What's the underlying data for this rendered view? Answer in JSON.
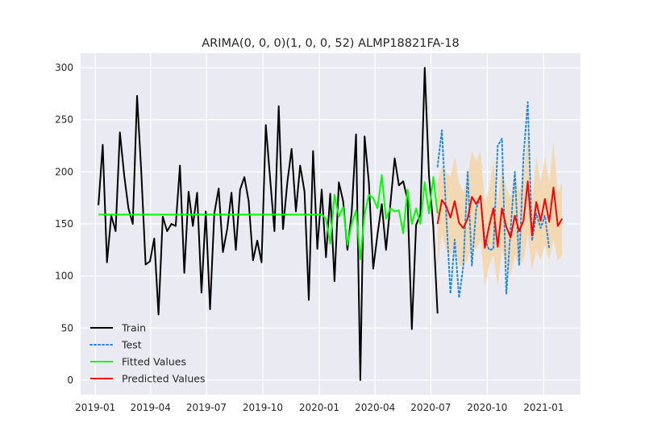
{
  "chart_data": {
    "type": "line",
    "title": "ARIMA(0, 0, 0)(1, 0, 0, 52) ALMP18821FA-18",
    "xlabel": "",
    "ylabel": "",
    "x_range": [
      "2018-12-08",
      "2021-03-02"
    ],
    "ylim": [
      -14,
      314
    ],
    "grid": true,
    "legend_position": "lower-left",
    "x_ticks": [
      {
        "date": "2019-01-01",
        "label": "2019-01"
      },
      {
        "date": "2019-04-01",
        "label": "2019-04"
      },
      {
        "date": "2019-07-01",
        "label": "2019-07"
      },
      {
        "date": "2019-10-01",
        "label": "2019-10"
      },
      {
        "date": "2020-01-01",
        "label": "2020-01"
      },
      {
        "date": "2020-04-01",
        "label": "2020-04"
      },
      {
        "date": "2020-07-01",
        "label": "2020-07"
      },
      {
        "date": "2020-10-01",
        "label": "2020-10"
      },
      {
        "date": "2021-01-01",
        "label": "2021-01"
      }
    ],
    "y_ticks": [
      0,
      50,
      100,
      150,
      200,
      250,
      300
    ],
    "series": [
      {
        "name": "Train",
        "color": "#000000",
        "style": "solid",
        "start_date": "2019-01-06",
        "step_days": 7,
        "values": [
          168,
          226,
          113,
          158,
          143,
          238,
          197,
          165,
          150,
          273,
          199,
          111,
          114,
          136,
          63,
          157,
          143,
          150,
          148,
          206,
          103,
          181,
          148,
          180,
          84,
          162,
          68,
          160,
          184,
          123,
          145,
          180,
          125,
          183,
          195,
          172,
          115,
          134,
          113,
          245,
          193,
          143,
          263,
          145,
          190,
          222,
          162,
          206,
          181,
          77,
          220,
          126,
          183,
          118,
          179,
          95,
          190,
          172,
          125,
          161,
          236,
          0,
          234,
          190,
          107,
          140,
          169,
          125,
          169,
          213,
          187,
          191,
          173,
          49,
          149,
          159,
          300,
          196,
          148,
          64
        ]
      },
      {
        "name": "Test",
        "color": "#1e88e5",
        "style": "dotted",
        "start_date": "2020-07-12",
        "step_days": 7,
        "values": [
          205,
          240,
          160,
          83,
          135,
          79,
          110,
          200,
          110,
          165,
          175,
          135,
          125,
          126,
          225,
          232,
          83,
          145,
          200,
          110,
          215,
          267,
          134,
          160,
          146,
          158,
          126
        ]
      },
      {
        "name": "Fitted Values",
        "color": "#00ff00",
        "style": "solid",
        "start_date": "2019-01-06",
        "step_days": 7,
        "values": [
          159,
          159,
          159,
          159,
          159,
          159,
          159,
          159,
          159,
          159,
          159,
          159,
          159,
          159,
          159,
          159,
          159,
          159,
          159,
          159,
          159,
          159,
          159,
          159,
          159,
          159,
          159,
          159,
          159,
          159,
          159,
          159,
          159,
          159,
          159,
          159,
          159,
          159,
          159,
          159,
          159,
          159,
          159,
          159,
          159,
          159,
          159,
          159,
          159,
          159,
          159,
          159,
          159,
          155,
          131,
          178,
          157,
          166,
          130,
          150,
          163,
          116,
          159,
          178,
          175,
          165,
          197,
          155,
          165,
          162,
          163,
          141,
          183,
          150,
          165,
          150,
          190,
          160,
          195,
          160
        ]
      },
      {
        "name": "Predicted Values",
        "color": "#ff0000",
        "style": "solid",
        "start_date": "2020-07-12",
        "step_days": 7,
        "values": [
          150,
          173,
          167,
          156,
          172,
          151,
          146,
          155,
          176,
          169,
          177,
          127,
          148,
          165,
          128,
          165,
          147,
          137,
          158,
          143,
          153,
          191,
          139,
          171,
          153,
          174,
          152,
          185,
          148,
          155
        ],
        "ci_color": "#f5d6a8",
        "ci_lower": [
          110,
          140,
          125,
          120,
          130,
          110,
          110,
          115,
          130,
          125,
          135,
          90,
          110,
          120,
          90,
          125,
          110,
          100,
          120,
          110,
          115,
          140,
          105,
          125,
          115,
          130,
          115,
          135,
          115,
          120
        ],
        "ci_upper": [
          190,
          205,
          200,
          195,
          215,
          190,
          180,
          195,
          220,
          210,
          220,
          170,
          185,
          210,
          170,
          205,
          185,
          175,
          200,
          180,
          195,
          240,
          175,
          215,
          190,
          215,
          190,
          230,
          180,
          190
        ]
      }
    ]
  }
}
